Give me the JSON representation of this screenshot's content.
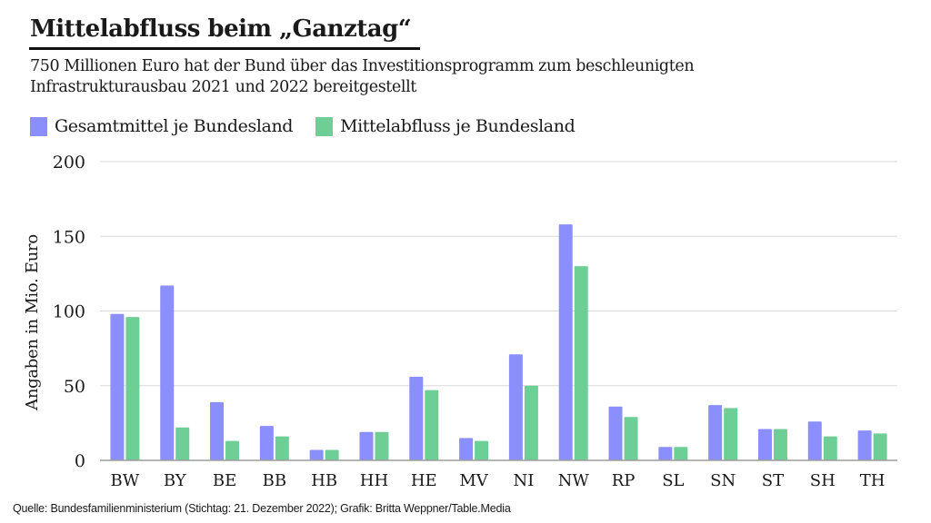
{
  "header": {
    "title": "Mittelabfluss beim „Ganztag“",
    "subtitle_line1": "750 Millionen Euro hat der Bund über das Investitionsprogramm zum beschleunigten",
    "subtitle_line2": "Infrastrukturausbau 2021 und 2022 bereitgestellt"
  },
  "footer": {
    "source": "Quelle: Bundesfamilienministerium (Stichtag: 21. Dezember 2022); Grafik: Britta Weppner/Table.Media"
  },
  "colors": {
    "series1": "#8a8ffd",
    "series2": "#6ecf96",
    "grid": "#d9d9d9",
    "axis": "#9e9e9e"
  },
  "chart_data": {
    "type": "bar",
    "title": "Mittelabfluss beim „Ganztag“",
    "xlabel": "",
    "ylabel": "Angaben in Mio. Euro",
    "ylim": [
      0,
      200
    ],
    "yticks": [
      "0",
      "50",
      "100",
      "150",
      "200"
    ],
    "ytick_values": [
      0,
      50,
      100,
      150,
      200
    ],
    "grid": true,
    "legend_position": "top-left",
    "categories": [
      "BW",
      "BY",
      "BE",
      "BB",
      "HB",
      "HH",
      "HE",
      "MV",
      "NI",
      "NW",
      "RP",
      "SL",
      "SN",
      "ST",
      "SH",
      "TH"
    ],
    "series": [
      {
        "name": "Gesamtmittel je Bundesland",
        "values": [
          98,
          117,
          39,
          23,
          7,
          19,
          56,
          15,
          71,
          158,
          36,
          9,
          37,
          21,
          26,
          20
        ]
      },
      {
        "name": "Mittelabfluss je Bundesland",
        "values": [
          96,
          22,
          13,
          16,
          7,
          19,
          47,
          13,
          50,
          130,
          29,
          9,
          35,
          21,
          16,
          18
        ]
      }
    ]
  }
}
